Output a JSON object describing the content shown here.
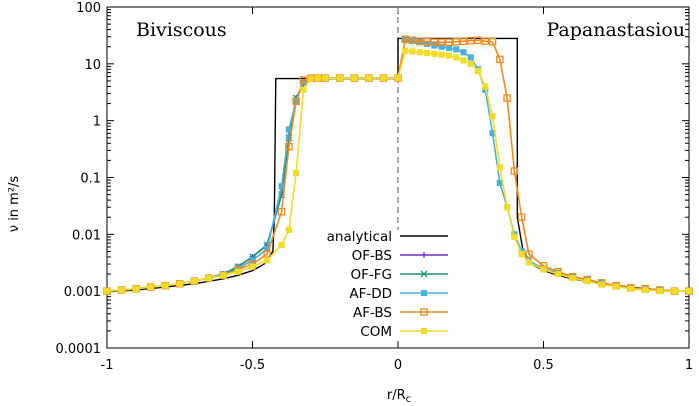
{
  "chart_data": {
    "type": "line",
    "title": "",
    "xlabel": "r/R",
    "xlabel_sub": "c",
    "ylabel": "ν in m²/s",
    "xscale": "linear",
    "yscale": "log",
    "xlim": [
      -1,
      1
    ],
    "ylim": [
      0.0001,
      100
    ],
    "xticks": [
      -1,
      -0.5,
      0,
      0.5,
      1
    ],
    "xtick_labels": [
      "-1",
      "-0.5",
      "0",
      "0.5",
      "1"
    ],
    "yticks": [
      0.0001,
      0.001,
      0.01,
      0.1,
      1,
      10,
      100
    ],
    "ytick_labels": [
      "0.0001",
      "0.001",
      "0.01",
      "0.1",
      "1",
      "10",
      "100"
    ],
    "grid": false,
    "legend_position": "lower-center",
    "annotations": [
      "Biviscous",
      "Papanastasiou"
    ],
    "divider_x": 0,
    "series": [
      {
        "name": "analytical",
        "color": "#000000",
        "marker": "none",
        "step": true,
        "x": [
          -1,
          -0.9,
          -0.8,
          -0.7,
          -0.6,
          -0.55,
          -0.5,
          -0.46,
          -0.43,
          -0.425,
          -0.42,
          -0.3,
          -0.2,
          -0.1,
          0,
          0,
          0.2,
          0.41,
          0.41,
          0.43,
          0.46,
          0.5,
          0.55,
          0.6,
          0.7,
          0.8,
          0.9,
          1
        ],
        "y": [
          0.00098,
          0.00105,
          0.00118,
          0.00135,
          0.00165,
          0.0019,
          0.0023,
          0.003,
          0.005,
          0.02,
          5.5,
          5.5,
          5.5,
          5.5,
          5.5,
          28,
          28,
          28,
          0.02,
          0.005,
          0.003,
          0.0023,
          0.0019,
          0.00165,
          0.00135,
          0.00118,
          0.00105,
          0.00098
        ]
      },
      {
        "name": "OF-BS",
        "color": "#7b2fbf",
        "marker": "plus",
        "x": [
          -1,
          -0.95,
          -0.9,
          -0.85,
          -0.8,
          -0.75,
          -0.7,
          -0.65,
          -0.6,
          -0.55,
          -0.5,
          -0.45,
          -0.4,
          -0.375,
          -0.35,
          -0.325,
          -0.3,
          -0.275,
          -0.25,
          -0.2,
          -0.15,
          -0.1,
          -0.05,
          0
        ],
        "y": [
          0.001,
          0.00105,
          0.0011,
          0.00118,
          0.00125,
          0.00135,
          0.0015,
          0.0017,
          0.002,
          0.0027,
          0.004,
          0.0065,
          0.05,
          0.5,
          2.5,
          4.5,
          5.4,
          5.6,
          5.6,
          5.6,
          5.6,
          5.6,
          5.6,
          5.6
        ]
      },
      {
        "name": "OF-FG",
        "color": "#17967e",
        "marker": "x",
        "x": [
          -1,
          -0.95,
          -0.9,
          -0.85,
          -0.8,
          -0.75,
          -0.7,
          -0.65,
          -0.6,
          -0.55,
          -0.5,
          -0.45,
          -0.4,
          -0.375,
          -0.35,
          -0.325,
          -0.3,
          -0.275,
          -0.25,
          -0.2,
          -0.15,
          -0.1,
          -0.05,
          0
        ],
        "y": [
          0.001,
          0.00105,
          0.0011,
          0.00118,
          0.00125,
          0.00135,
          0.0015,
          0.0017,
          0.002,
          0.0027,
          0.004,
          0.0065,
          0.05,
          0.5,
          2.5,
          4.5,
          5.4,
          5.6,
          5.6,
          5.6,
          5.6,
          5.6,
          5.6,
          5.6
        ]
      },
      {
        "name": "AF-DD",
        "color": "#4ab0e0",
        "marker": "square",
        "x": [
          -1,
          -0.95,
          -0.9,
          -0.85,
          -0.8,
          -0.75,
          -0.7,
          -0.65,
          -0.6,
          -0.55,
          -0.5,
          -0.45,
          -0.4,
          -0.375,
          -0.35,
          -0.325,
          -0.3,
          -0.275,
          -0.25,
          -0.2,
          -0.15,
          -0.1,
          -0.05,
          0,
          0.025,
          0.05,
          0.075,
          0.1,
          0.125,
          0.15,
          0.175,
          0.2,
          0.225,
          0.25,
          0.275,
          0.3,
          0.325,
          0.35,
          0.375,
          0.4,
          0.425,
          0.45,
          0.5,
          0.55,
          0.6,
          0.65,
          0.7,
          0.75,
          0.8,
          0.85,
          0.9,
          0.95,
          1
        ],
        "y": [
          0.001,
          0.00105,
          0.0011,
          0.00118,
          0.00125,
          0.00135,
          0.0015,
          0.0017,
          0.0019,
          0.0025,
          0.0035,
          0.0055,
          0.07,
          0.7,
          2.2,
          4.8,
          5.6,
          5.6,
          5.6,
          5.6,
          5.6,
          5.6,
          5.6,
          5.6,
          26.5,
          25.5,
          24,
          22.5,
          21,
          20,
          19,
          18,
          16,
          13,
          8,
          3.5,
          0.6,
          0.08,
          0.03,
          0.01,
          0.005,
          0.0034,
          0.0025,
          0.0021,
          0.0018,
          0.0016,
          0.0014,
          0.00125,
          0.00115,
          0.0011,
          0.00105,
          0.001,
          0.001
        ]
      },
      {
        "name": "AF-BS",
        "color": "#f08c1e",
        "marker": "square-open",
        "x": [
          -1,
          -0.95,
          -0.9,
          -0.85,
          -0.8,
          -0.75,
          -0.7,
          -0.65,
          -0.6,
          -0.55,
          -0.5,
          -0.45,
          -0.4,
          -0.375,
          -0.35,
          -0.325,
          -0.3,
          -0.275,
          -0.25,
          -0.2,
          -0.15,
          -0.1,
          -0.05,
          0,
          0.025,
          0.05,
          0.075,
          0.1,
          0.125,
          0.15,
          0.175,
          0.2,
          0.225,
          0.25,
          0.275,
          0.3,
          0.325,
          0.35,
          0.375,
          0.4,
          0.425,
          0.45,
          0.5,
          0.55,
          0.6,
          0.65,
          0.7,
          0.75,
          0.8,
          0.85,
          0.9,
          0.95,
          1
        ],
        "y": [
          0.001,
          0.00105,
          0.0011,
          0.00118,
          0.00125,
          0.00135,
          0.0015,
          0.0017,
          0.0019,
          0.0024,
          0.003,
          0.0045,
          0.025,
          0.35,
          2.2,
          5.2,
          5.6,
          5.6,
          5.6,
          5.6,
          5.6,
          5.6,
          5.6,
          5.6,
          27,
          26,
          25,
          24.5,
          24,
          24,
          24,
          24.5,
          25,
          25.5,
          26,
          25,
          24.5,
          12,
          2.5,
          0.13,
          0.02,
          0.0045,
          0.0028,
          0.0022,
          0.0018,
          0.0016,
          0.0014,
          0.00125,
          0.00115,
          0.0011,
          0.00105,
          0.001,
          0.001
        ]
      },
      {
        "name": "COM",
        "color": "#f2dc2a",
        "marker": "square",
        "x": [
          -1,
          -0.95,
          -0.9,
          -0.85,
          -0.8,
          -0.75,
          -0.7,
          -0.65,
          -0.6,
          -0.55,
          -0.5,
          -0.45,
          -0.4,
          -0.375,
          -0.35,
          -0.325,
          -0.3,
          -0.275,
          -0.25,
          -0.2,
          -0.15,
          -0.1,
          -0.05,
          0,
          0.025,
          0.05,
          0.075,
          0.1,
          0.125,
          0.15,
          0.175,
          0.2,
          0.225,
          0.25,
          0.275,
          0.3,
          0.325,
          0.35,
          0.375,
          0.4,
          0.425,
          0.45,
          0.5,
          0.55,
          0.6,
          0.65,
          0.7,
          0.75,
          0.8,
          0.85,
          0.9,
          0.95,
          1
        ],
        "y": [
          0.001,
          0.00105,
          0.0011,
          0.00118,
          0.00125,
          0.00135,
          0.0015,
          0.0017,
          0.0019,
          0.0022,
          0.0027,
          0.0035,
          0.0065,
          0.012,
          0.12,
          3.5,
          5.5,
          5.6,
          5.6,
          5.6,
          5.6,
          5.6,
          5.6,
          5.6,
          17,
          16.5,
          16,
          15.5,
          15,
          14.5,
          14,
          13,
          11.5,
          10,
          7.5,
          4,
          1.2,
          0.15,
          0.03,
          0.009,
          0.0045,
          0.0032,
          0.0024,
          0.002,
          0.0017,
          0.0015,
          0.0013,
          0.0012,
          0.0011,
          0.00105,
          0.001,
          0.001,
          0.001
        ]
      }
    ]
  }
}
